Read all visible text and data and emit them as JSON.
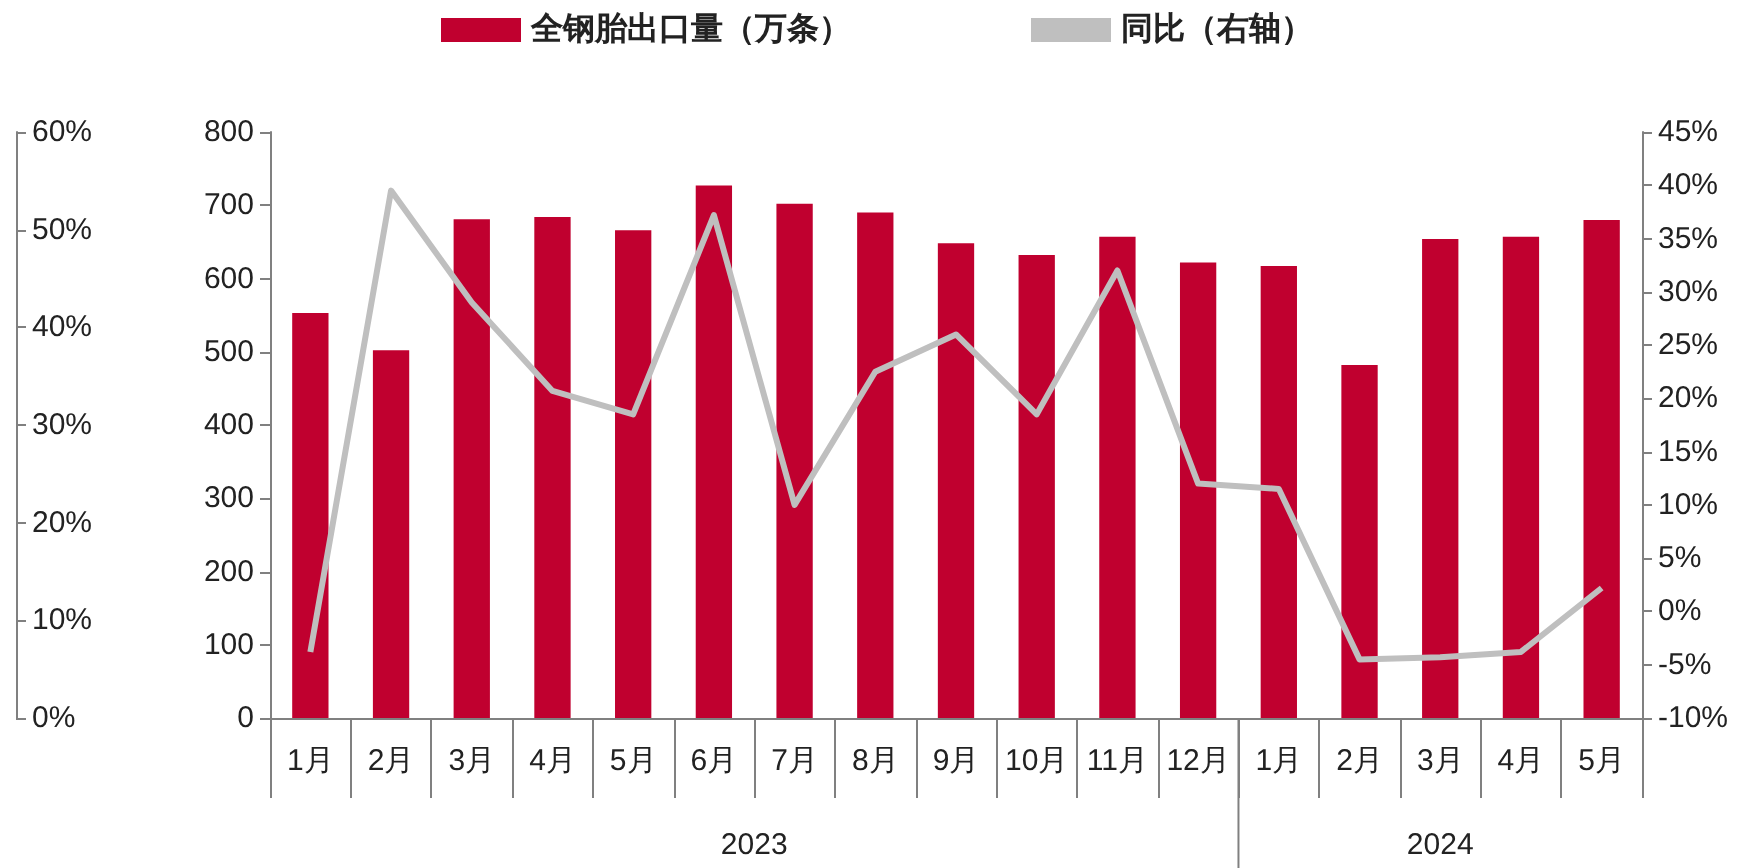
{
  "chart_data": {
    "type": "bar",
    "categories": [
      "1月",
      "2月",
      "3月",
      "4月",
      "5月",
      "6月",
      "7月",
      "8月",
      "9月",
      "10月",
      "11月",
      "12月",
      "1月",
      "2月",
      "3月",
      "4月",
      "5月"
    ],
    "series": [
      {
        "name": "全钢胎出口量（万条）",
        "color": "#c0002f",
        "values": [
          553,
          502,
          681,
          684,
          666,
          727,
          702,
          690,
          648,
          632,
          657,
          622,
          617,
          482,
          654,
          657,
          680
        ]
      },
      {
        "name": "同比（右轴）",
        "type": "line",
        "axis": "y2",
        "color": "#bfbfbf",
        "values": [
          -3.8,
          39.5,
          29,
          20.7,
          18.5,
          37.2,
          10,
          22.5,
          26,
          18.5,
          32,
          12,
          11.5,
          -4.5,
          -4.3,
          -3.8,
          2.2
        ]
      }
    ],
    "ylim": [
      0,
      800
    ],
    "yticks": [
      0,
      100,
      200,
      300,
      400,
      500,
      600,
      700,
      800
    ],
    "y2lim": [
      -10,
      45
    ],
    "y2ticks": [
      {
        "value": -10,
        "label": "-10%"
      },
      {
        "value": -5,
        "label": "-5%"
      },
      {
        "value": 0,
        "label": "0%"
      },
      {
        "value": 5,
        "label": "5%"
      },
      {
        "value": 10,
        "label": "10%"
      },
      {
        "value": 15,
        "label": "15%"
      },
      {
        "value": 20,
        "label": "20%"
      },
      {
        "value": 25,
        "label": "25%"
      },
      {
        "value": 30,
        "label": "30%"
      },
      {
        "value": 35,
        "label": "35%"
      },
      {
        "value": 40,
        "label": "40%"
      },
      {
        "value": 45,
        "label": "45%"
      }
    ],
    "y3lim": [
      0,
      60
    ],
    "y3ticks": [
      {
        "value": 0,
        "label": "0%"
      },
      {
        "value": 10,
        "label": "10%"
      },
      {
        "value": 20,
        "label": "20%"
      },
      {
        "value": 30,
        "label": "30%"
      },
      {
        "value": 40,
        "label": "40%"
      },
      {
        "value": 50,
        "label": "50%"
      },
      {
        "value": 60,
        "label": "60%"
      }
    ],
    "annotations": [
      "2023",
      "2024"
    ],
    "legend": "top",
    "grid": false,
    "marker": "none",
    "line_style": "solid"
  }
}
